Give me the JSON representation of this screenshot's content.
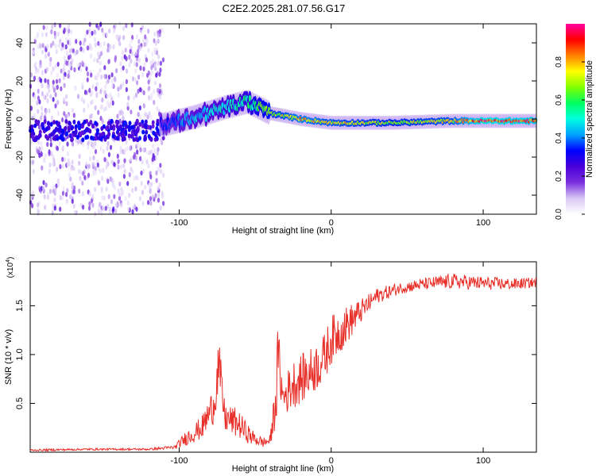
{
  "title": "C2E2.2025.281.07.56.G17",
  "chart_data": [
    {
      "type": "heatmap",
      "name": "spectrogram",
      "xlabel": "Height of straight line (km)",
      "ylabel": "Frequency (Hz)",
      "xlim": [
        -198,
        135
      ],
      "ylim": [
        -50,
        50
      ],
      "xticks": [
        -100,
        0,
        100
      ],
      "yticks": [
        -40,
        -20,
        0,
        20,
        40
      ],
      "colorbar": {
        "label": "Normalized spectral amplitude",
        "range": [
          0.0,
          1.0
        ],
        "ticks": [
          0.0,
          0.2,
          0.4,
          0.6,
          0.8
        ],
        "colormap": [
          "#ffffff",
          "#d9c8f5",
          "#7b2fe0",
          "#4a00d8",
          "#0000ff",
          "#00a0ff",
          "#00ffe0",
          "#00ff60",
          "#80ff00",
          "#ffff00",
          "#ff8000",
          "#ff0000",
          "#ff00a0"
        ]
      },
      "ridge": [
        {
          "x": -110,
          "y": -3,
          "amp": 0.35
        },
        {
          "x": -90,
          "y": 1,
          "amp": 0.45
        },
        {
          "x": -70,
          "y": 6,
          "amp": 0.5
        },
        {
          "x": -55,
          "y": 9,
          "amp": 0.55
        },
        {
          "x": -40,
          "y": 3,
          "amp": 0.7
        },
        {
          "x": -20,
          "y": 0,
          "amp": 0.8
        },
        {
          "x": 0,
          "y": -2,
          "amp": 0.75
        },
        {
          "x": 40,
          "y": -2,
          "amp": 0.7
        },
        {
          "x": 80,
          "y": -1,
          "amp": 0.75
        },
        {
          "x": 100,
          "y": -1,
          "amp": 0.95
        },
        {
          "x": 135,
          "y": -1,
          "amp": 0.9
        }
      ]
    },
    {
      "type": "line",
      "name": "snr",
      "xlabel": "Height of straight line (km)",
      "ylabel": "SNR (10 * v/v)",
      "scale_note": "(x10",
      "scale_exp": "4",
      "xlim": [
        -198,
        135
      ],
      "ylim": [
        0.0,
        1.95
      ],
      "xticks": [
        -100,
        0,
        100
      ],
      "yticks": [
        0.5,
        1.0,
        1.5
      ],
      "ytick_labels": [
        "0.5",
        "1.0",
        "1.5"
      ],
      "color": "#e8302a",
      "x": [
        -198,
        -160,
        -120,
        -103,
        -95,
        -85,
        -77,
        -74,
        -70,
        -62,
        -52,
        -45,
        -40,
        -36,
        -35,
        -32,
        -25,
        -15,
        -5,
        0,
        10,
        20,
        30,
        45,
        60,
        80,
        100,
        120,
        135
      ],
      "y": [
        0.02,
        0.03,
        0.03,
        0.05,
        0.15,
        0.25,
        0.5,
        0.9,
        0.35,
        0.3,
        0.15,
        0.1,
        0.12,
        0.6,
        1.05,
        0.55,
        0.7,
        0.8,
        0.95,
        1.15,
        1.3,
        1.45,
        1.6,
        1.68,
        1.72,
        1.75,
        1.73,
        1.72,
        1.74
      ],
      "noise": [
        0.01,
        0.01,
        0.01,
        0.02,
        0.08,
        0.12,
        0.2,
        0.3,
        0.15,
        0.15,
        0.08,
        0.05,
        0.06,
        0.3,
        0.3,
        0.2,
        0.25,
        0.25,
        0.25,
        0.25,
        0.2,
        0.12,
        0.08,
        0.06,
        0.06,
        0.08,
        0.07,
        0.06,
        0.05
      ]
    }
  ]
}
